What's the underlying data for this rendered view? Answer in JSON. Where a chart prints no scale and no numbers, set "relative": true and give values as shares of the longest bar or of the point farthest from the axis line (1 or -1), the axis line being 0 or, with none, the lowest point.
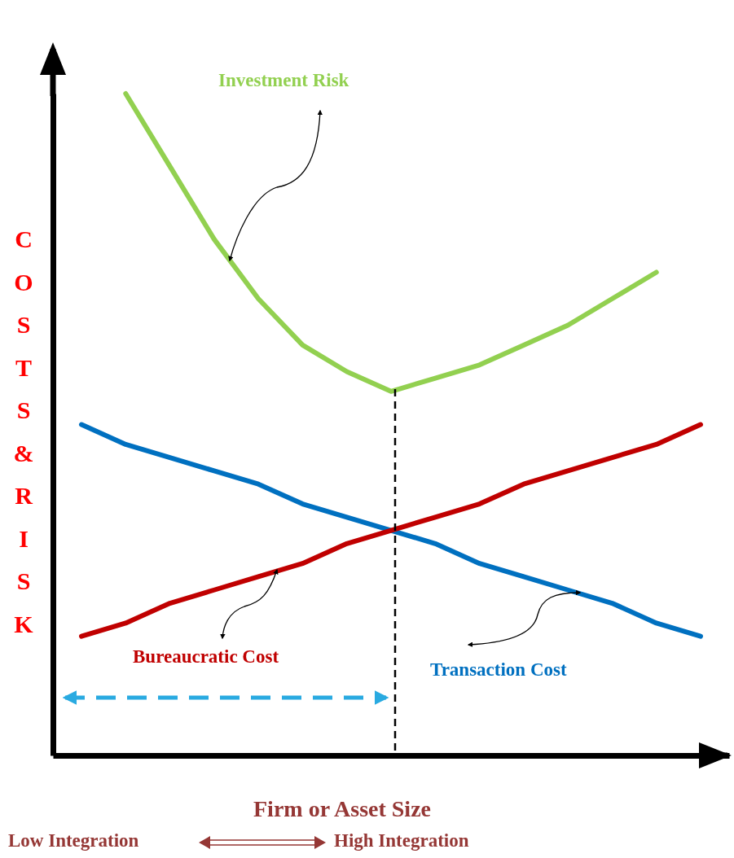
{
  "chart_data": {
    "type": "line",
    "relative": true,
    "ylabel": "COSTS&RISK",
    "xlabel": "Firm or Asset Size",
    "annotations": [
      "Low Integration",
      "High Integration"
    ],
    "categories": [
      null,
      null,
      null,
      null,
      null,
      null,
      null,
      null,
      null,
      null,
      null,
      null,
      null,
      null,
      null
    ],
    "series": [
      {
        "name": "Investment Risk",
        "color": "#92d050",
        "values": [
          null,
          1,
          0.89,
          0.78,
          0.69,
          0.62,
          0.58,
          0.55,
          0.57,
          0.59,
          0.62,
          0.65,
          0.69,
          0.73,
          null
        ]
      },
      {
        "name": "Transaction Cost",
        "color": "#0070c0",
        "values": [
          0.5,
          0.47,
          0.45,
          0.43,
          0.41,
          0.38,
          0.36,
          0.34,
          0.32,
          0.29,
          0.27,
          0.25,
          0.23,
          0.2,
          0.18
        ]
      },
      {
        "name": "Bureaucratic Cost",
        "color": "#c00000",
        "values": [
          0.18,
          0.2,
          0.23,
          0.25,
          0.27,
          0.29,
          0.32,
          0.34,
          0.36,
          0.38,
          0.41,
          0.43,
          0.45,
          0.47,
          0.5
        ]
      }
    ],
    "grid": false
  }
}
